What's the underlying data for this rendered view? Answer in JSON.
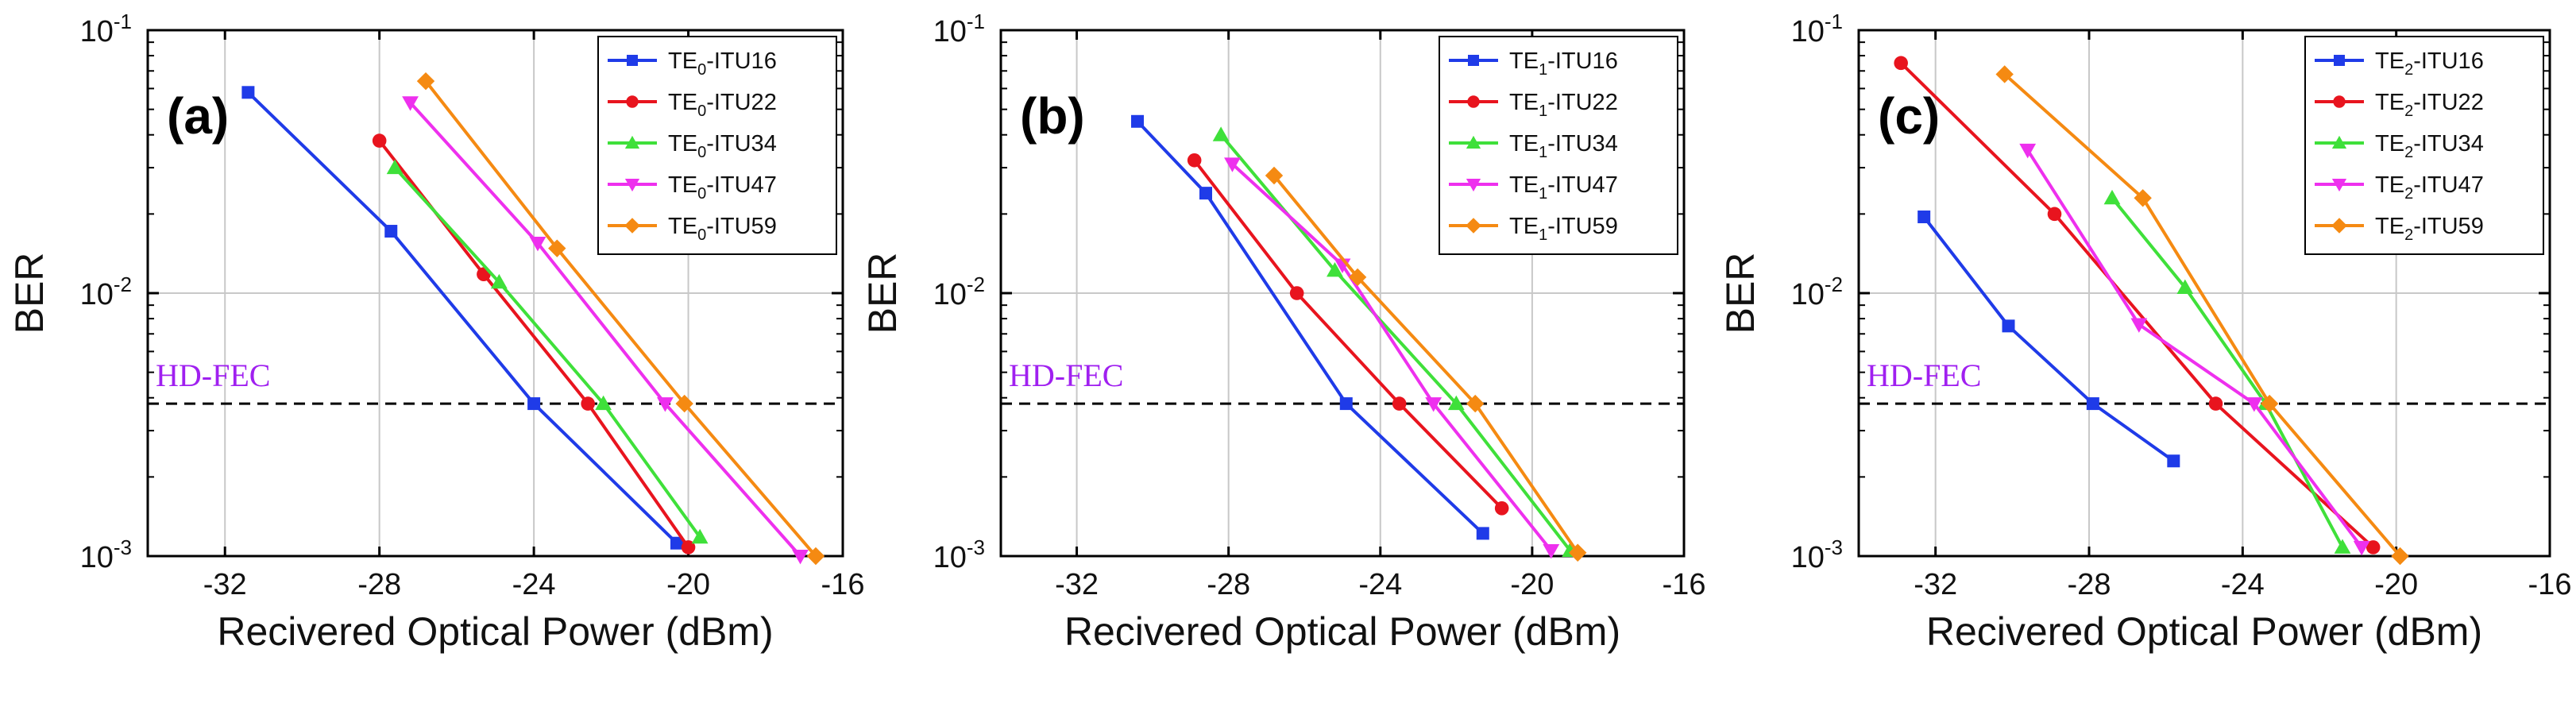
{
  "colors": {
    "ITU16": "#1f3be8",
    "ITU22": "#e8141e",
    "ITU34": "#3fe03a",
    "ITU47": "#ee30ee",
    "ITU59": "#f58a12",
    "fec_label": "#a020f0",
    "grid": "#c8c8c8"
  },
  "chart_data": [
    {
      "type": "line",
      "panel_label": "(a)",
      "xlabel": "Recivered Optical Power (dBm)",
      "ylabel": "BER",
      "yscale": "log",
      "xlim": [
        -34,
        -16
      ],
      "ylim": [
        0.001,
        0.1
      ],
      "x_ticks": [
        "-32",
        "-28",
        "-24",
        "-20",
        "-16"
      ],
      "y_ticks": [
        {
          "base": "10",
          "exp": "-3"
        },
        {
          "base": "10",
          "exp": "-2"
        },
        {
          "base": "10",
          "exp": "-1"
        }
      ],
      "threshold": {
        "label": "HD-FEC",
        "value": 0.0038
      },
      "legend_position": "top-right",
      "series": [
        {
          "name": "ITU16",
          "mode": "TE",
          "mode_index": "0",
          "suffix": "-ITU16",
          "marker": "square",
          "x": [
            -31.4,
            -27.7,
            -24.0,
            -20.3
          ],
          "y": [
            0.058,
            0.0172,
            0.0038,
            0.00112
          ]
        },
        {
          "name": "ITU22",
          "mode": "TE",
          "mode_index": "0",
          "suffix": "-ITU22",
          "marker": "circle",
          "x": [
            -28.0,
            -25.3,
            -22.6,
            -20.0
          ],
          "y": [
            0.038,
            0.0118,
            0.0038,
            0.00108
          ]
        },
        {
          "name": "ITU34",
          "mode": "TE",
          "mode_index": "0",
          "suffix": "-ITU34",
          "marker": "triangle-up",
          "x": [
            -27.6,
            -24.9,
            -22.2,
            -19.7
          ],
          "y": [
            0.03,
            0.011,
            0.0038,
            0.00118
          ]
        },
        {
          "name": "ITU47",
          "mode": "TE",
          "mode_index": "0",
          "suffix": "-ITU47",
          "marker": "triangle-down",
          "x": [
            -27.2,
            -23.9,
            -20.6,
            -17.1
          ],
          "y": [
            0.053,
            0.0155,
            0.0038,
            0.001
          ]
        },
        {
          "name": "ITU59",
          "mode": "TE",
          "mode_index": "0",
          "suffix": "-ITU59",
          "marker": "diamond",
          "x": [
            -26.8,
            -23.4,
            -20.1,
            -16.7
          ],
          "y": [
            0.064,
            0.0148,
            0.0038,
            0.001
          ]
        }
      ]
    },
    {
      "type": "line",
      "panel_label": "(b)",
      "xlabel": "Recivered Optical Power (dBm)",
      "ylabel": "BER",
      "yscale": "log",
      "xlim": [
        -34,
        -16
      ],
      "ylim": [
        0.001,
        0.1
      ],
      "x_ticks": [
        "-32",
        "-28",
        "-24",
        "-20",
        "-16"
      ],
      "y_ticks": [
        {
          "base": "10",
          "exp": "-3"
        },
        {
          "base": "10",
          "exp": "-2"
        },
        {
          "base": "10",
          "exp": "-1"
        }
      ],
      "threshold": {
        "label": "HD-FEC",
        "value": 0.0038
      },
      "legend_position": "top-right",
      "series": [
        {
          "name": "ITU16",
          "mode": "TE",
          "mode_index": "1",
          "suffix": "-ITU16",
          "marker": "square",
          "x": [
            -30.4,
            -28.6,
            -24.9,
            -21.3
          ],
          "y": [
            0.045,
            0.024,
            0.0038,
            0.00122
          ]
        },
        {
          "name": "ITU22",
          "mode": "TE",
          "mode_index": "1",
          "suffix": "-ITU22",
          "marker": "circle",
          "x": [
            -28.9,
            -26.2,
            -23.5,
            -20.8
          ],
          "y": [
            0.032,
            0.01,
            0.0038,
            0.00152
          ]
        },
        {
          "name": "ITU34",
          "mode": "TE",
          "mode_index": "1",
          "suffix": "-ITU34",
          "marker": "triangle-up",
          "x": [
            -28.2,
            -25.2,
            -22.0,
            -19.0
          ],
          "y": [
            0.04,
            0.0122,
            0.0038,
            0.00105
          ]
        },
        {
          "name": "ITU47",
          "mode": "TE",
          "mode_index": "1",
          "suffix": "-ITU47",
          "marker": "triangle-down",
          "x": [
            -27.9,
            -25.0,
            -22.6,
            -19.5
          ],
          "y": [
            0.031,
            0.0128,
            0.0038,
            0.00105
          ]
        },
        {
          "name": "ITU59",
          "mode": "TE",
          "mode_index": "1",
          "suffix": "-ITU59",
          "marker": "diamond",
          "x": [
            -26.8,
            -24.6,
            -21.5,
            -18.8
          ],
          "y": [
            0.028,
            0.0115,
            0.0038,
            0.00103
          ]
        }
      ]
    },
    {
      "type": "line",
      "panel_label": "(c)",
      "xlabel": "Recivered Optical Power (dBm)",
      "ylabel": "BER",
      "yscale": "log",
      "xlim": [
        -34,
        -16
      ],
      "ylim": [
        0.001,
        0.1
      ],
      "x_ticks": [
        "-32",
        "-28",
        "-24",
        "-20",
        "-16"
      ],
      "y_ticks": [
        {
          "base": "10",
          "exp": "-3"
        },
        {
          "base": "10",
          "exp": "-2"
        },
        {
          "base": "10",
          "exp": "-1"
        }
      ],
      "threshold": {
        "label": "HD-FEC",
        "value": 0.0038
      },
      "legend_position": "top-right",
      "series": [
        {
          "name": "ITU16",
          "mode": "TE",
          "mode_index": "2",
          "suffix": "-ITU16",
          "marker": "square",
          "x": [
            -32.3,
            -30.1,
            -27.9,
            -25.8
          ],
          "y": [
            0.0195,
            0.0075,
            0.0038,
            0.0023
          ]
        },
        {
          "name": "ITU22",
          "mode": "TE",
          "mode_index": "2",
          "suffix": "-ITU22",
          "marker": "circle",
          "x": [
            -32.9,
            -28.9,
            -24.7,
            -20.6
          ],
          "y": [
            0.075,
            0.02,
            0.0038,
            0.00108
          ]
        },
        {
          "name": "ITU34",
          "mode": "TE",
          "mode_index": "2",
          "suffix": "-ITU34",
          "marker": "triangle-up",
          "x": [
            -27.4,
            -25.5,
            -23.4,
            -21.4
          ],
          "y": [
            0.023,
            0.0105,
            0.0038,
            0.00108
          ]
        },
        {
          "name": "ITU47",
          "mode": "TE",
          "mode_index": "2",
          "suffix": "-ITU47",
          "marker": "triangle-down",
          "x": [
            -29.6,
            -26.7,
            -23.7,
            -20.9
          ],
          "y": [
            0.035,
            0.0076,
            0.0038,
            0.00108
          ]
        },
        {
          "name": "ITU59",
          "mode": "TE",
          "mode_index": "2",
          "suffix": "-ITU59",
          "marker": "diamond",
          "x": [
            -30.2,
            -26.6,
            -23.3,
            -19.9
          ],
          "y": [
            0.068,
            0.023,
            0.0038,
            0.001
          ]
        }
      ]
    }
  ]
}
